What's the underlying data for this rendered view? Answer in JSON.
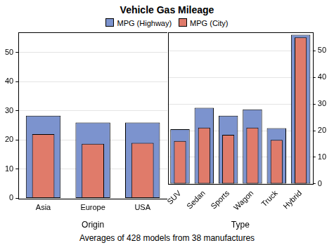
{
  "title": "Vehicle Gas Mileage",
  "footnote": "Averages of 428 models from 38 manufactures",
  "chart_data": [
    {
      "type": "bar",
      "xlabel": "Origin",
      "categories": [
        "Asia",
        "Europe",
        "USA"
      ],
      "series": [
        {
          "name": "MPG (Highway)",
          "color": "#7c93ce",
          "values": [
            28.3,
            26.0,
            26.0
          ]
        },
        {
          "name": "MPG (City)",
          "color": "#e07b6a",
          "values": [
            22.0,
            18.7,
            19.0
          ]
        }
      ],
      "ylim": [
        0,
        57
      ],
      "yticks": [
        0,
        10,
        20,
        30,
        40,
        50
      ],
      "grid": true,
      "legend": "top"
    },
    {
      "type": "bar",
      "xlabel": "Type",
      "categories": [
        "SUV",
        "Sedan",
        "Sports",
        "Wagon",
        "Truck",
        "Hybrid"
      ],
      "series": [
        {
          "name": "MPG (Highway)",
          "color": "#7c93ce",
          "values": [
            20.5,
            28.6,
            25.6,
            28.0,
            20.9,
            56.0
          ]
        },
        {
          "name": "MPG (City)",
          "color": "#e07b6a",
          "values": [
            16.1,
            21.1,
            18.4,
            21.1,
            16.5,
            55.0
          ]
        }
      ],
      "ylim": [
        0,
        57
      ],
      "yticks": [
        0,
        10,
        20,
        30,
        40,
        50
      ],
      "grid": true,
      "legend": "top"
    }
  ]
}
